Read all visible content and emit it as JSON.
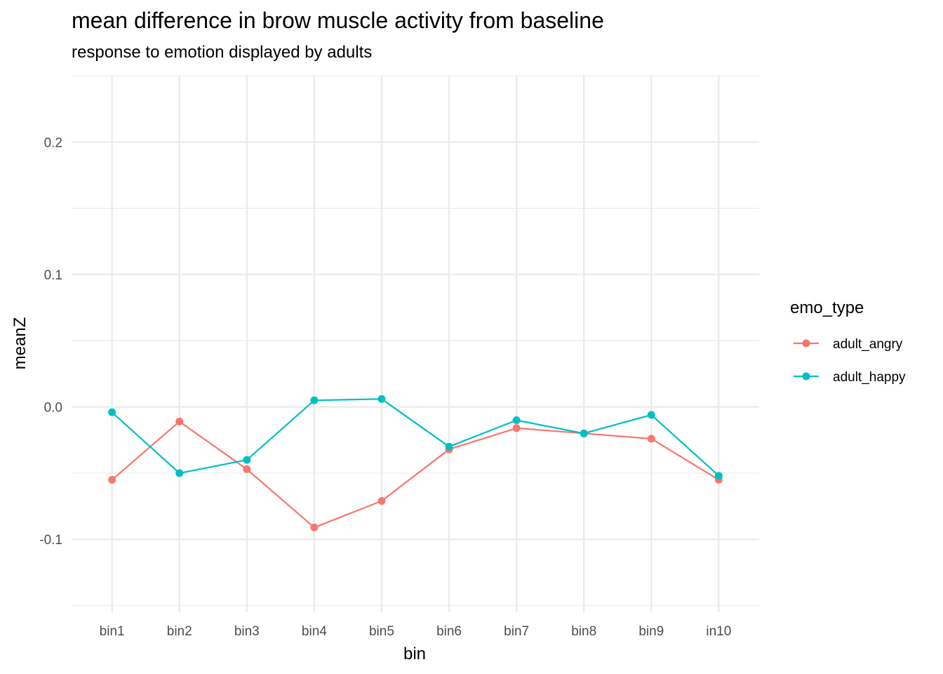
{
  "chart_data": {
    "type": "line",
    "title": "mean difference in brow muscle activity from baseline",
    "subtitle": "response to emotion displayed by adults",
    "xlabel": "bin",
    "ylabel": "meanZ",
    "categories": [
      "bin1",
      "bin2",
      "bin3",
      "bin4",
      "bin5",
      "bin6",
      "bin7",
      "bin8",
      "bin9",
      "in10"
    ],
    "ylim": [
      -0.155,
      0.25
    ],
    "yticks": [
      -0.1,
      0.0,
      0.1,
      0.2
    ],
    "ytick_labels": [
      "-0.1",
      "0.0",
      "0.1",
      "0.2"
    ],
    "grid": true,
    "legend": {
      "title": "emo_type",
      "position": "right"
    },
    "series": [
      {
        "name": "adult_angry",
        "color": "#F8766D",
        "values": [
          -0.055,
          -0.011,
          -0.047,
          -0.091,
          -0.071,
          -0.032,
          -0.016,
          -0.02,
          -0.024,
          -0.055
        ]
      },
      {
        "name": "adult_happy",
        "color": "#00BFC4",
        "values": [
          -0.004,
          -0.05,
          -0.04,
          0.005,
          0.006,
          -0.03,
          -0.01,
          -0.02,
          -0.006,
          -0.052
        ]
      }
    ]
  }
}
